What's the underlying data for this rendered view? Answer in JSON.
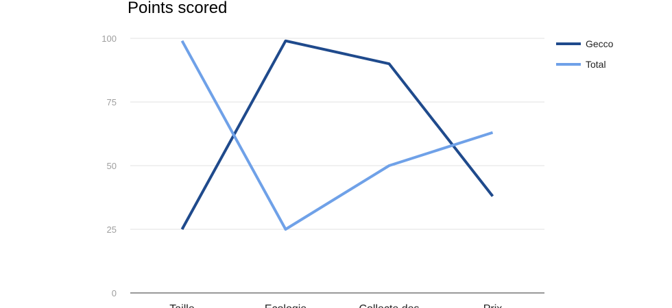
{
  "chart_data": {
    "type": "line",
    "title": "Points scored",
    "xlabel": "",
    "ylabel": "",
    "categories": [
      "Taille",
      "Ecologie",
      "Collecte des",
      "Prix"
    ],
    "ylim": [
      0,
      100
    ],
    "yticks": [
      0,
      25,
      50,
      75,
      100
    ],
    "grid": true,
    "legend_position": "right",
    "series": [
      {
        "name": "Gecco",
        "color": "#1f4a8c",
        "values": [
          25,
          99,
          90,
          38
        ]
      },
      {
        "name": "Total",
        "color": "#6fa1e8",
        "values": [
          99,
          25,
          50,
          63
        ]
      }
    ]
  }
}
